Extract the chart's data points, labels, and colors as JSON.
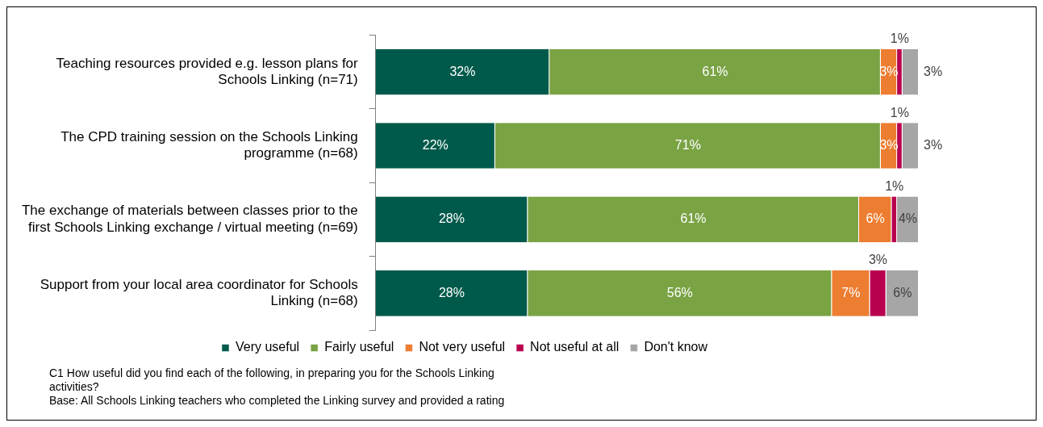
{
  "chart_data": {
    "type": "bar",
    "orientation": "horizontal",
    "stacked": true,
    "legend": "bottom",
    "categories": [
      "Teaching resources provided e.g. lesson plans for Schools Linking (n=71)",
      "The CPD training session on the Schools Linking programme (n=68)",
      "The exchange of materials between classes prior to the first Schools Linking exchange / virtual meeting (n=69)",
      "Support from your local area coordinator for Schools Linking (n=68)"
    ],
    "series": [
      {
        "name": "Very useful",
        "color": "#005a4b",
        "values": [
          32,
          22,
          28,
          28
        ],
        "value_labels": [
          "32%",
          "22%",
          "28%",
          "28%"
        ]
      },
      {
        "name": "Fairly useful",
        "color": "#7aa344",
        "values": [
          61,
          71,
          61,
          56
        ],
        "value_labels": [
          "61%",
          "71%",
          "61%",
          "56%"
        ]
      },
      {
        "name": "Not very useful",
        "color": "#ed7d31",
        "values": [
          3,
          3,
          6,
          7
        ],
        "value_labels": [
          "3%",
          "3%",
          "6%",
          "7%"
        ]
      },
      {
        "name": "Not useful at all",
        "color": "#b8004f",
        "values": [
          1,
          1,
          1,
          3
        ],
        "value_labels": [
          "1%",
          "1%",
          "1%",
          "3%"
        ]
      },
      {
        "name": "Don't know",
        "color": "#a6a6a6",
        "values": [
          3,
          3,
          4,
          6
        ],
        "value_labels": [
          "3%",
          "3%",
          "4%",
          "6%"
        ]
      }
    ],
    "annotations": [
      "C1 How useful did you find each of the following, in preparing you for the Schools Linking activities?",
      "Base:  All Schools Linking teachers who completed the Linking survey and provided a rating"
    ]
  }
}
